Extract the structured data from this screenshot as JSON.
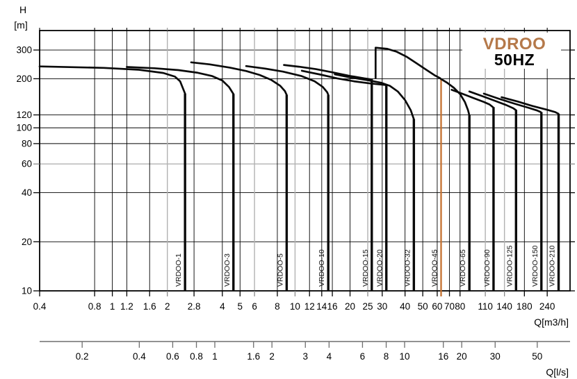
{
  "page": {
    "background": "#ffffff"
  },
  "title": {
    "brand": "VDROO",
    "frequency": "50HZ",
    "brand_color": "#b5794a",
    "frequency_color": "#000000"
  },
  "chart_data": {
    "type": "line",
    "title": "VDROO 50HZ pump family performance curves",
    "x_axis": {
      "label": "Q[m3/h]",
      "scale": "log",
      "range": [
        0.4,
        320
      ],
      "ticks": [
        "0.4",
        "0.8",
        "1",
        "1.2",
        "1.6",
        "2",
        "2.8",
        "4",
        "5",
        "6",
        "8",
        "10",
        "12",
        "14",
        "16",
        "20",
        "25",
        "30",
        "40",
        "50",
        "60",
        "70",
        "80",
        "110",
        "140",
        "180",
        "240"
      ],
      "gray_ticks": [
        2,
        6,
        10,
        25,
        110,
        140
      ]
    },
    "y_axis": {
      "label": "H",
      "unit": "[m]",
      "scale": "log",
      "range": [
        10,
        395
      ],
      "ticks": [
        300,
        200,
        120,
        100,
        80,
        60,
        40,
        20,
        10
      ],
      "gray_ticks": [
        60
      ]
    },
    "x_axis_secondary": {
      "label": "Q[l/s]",
      "ticks": [
        "0.2",
        "0.4",
        "0.6",
        "0.8",
        "1",
        "1.6",
        "2",
        "3",
        "4",
        "6",
        "8",
        "10",
        "16",
        "20",
        "30",
        "50"
      ]
    },
    "grid_color": "#000000",
    "grid_gray_color": "#b2b2b2",
    "curve_color": "#0a0a0a",
    "accent_drop_color": "#c4702e",
    "series": [
      {
        "name": "VRDOO-1",
        "end_q": 2.5,
        "points": [
          [
            0.4,
            238
          ],
          [
            0.9,
            233
          ],
          [
            1.4,
            227
          ],
          [
            1.9,
            217
          ],
          [
            2.2,
            206
          ],
          [
            2.35,
            193
          ],
          [
            2.5,
            162
          ]
        ]
      },
      {
        "name": "VRDOO-3",
        "end_q": 4.6,
        "points": [
          [
            1.2,
            236
          ],
          [
            1.7,
            232
          ],
          [
            2.3,
            226
          ],
          [
            2.9,
            218
          ],
          [
            3.5,
            208
          ],
          [
            4.0,
            195
          ],
          [
            4.35,
            178
          ],
          [
            4.6,
            161
          ]
        ]
      },
      {
        "name": "VRDOO-5",
        "end_q": 9.0,
        "points": [
          [
            2.7,
            252
          ],
          [
            3.4,
            245
          ],
          [
            4.4,
            234
          ],
          [
            5.4,
            223
          ],
          [
            6.4,
            211
          ],
          [
            7.4,
            197
          ],
          [
            8.3,
            181
          ],
          [
            8.8,
            168
          ],
          [
            9.0,
            159
          ]
        ]
      },
      {
        "name": "VRDOO-10",
        "end_q": 15.2,
        "points": [
          [
            5.4,
            239
          ],
          [
            6.8,
            231
          ],
          [
            8.6,
            221
          ],
          [
            10.8,
            208
          ],
          [
            12.8,
            193
          ],
          [
            14.2,
            178
          ],
          [
            15.0,
            165
          ],
          [
            15.2,
            159
          ]
        ]
      },
      {
        "name": "VRDOO-15",
        "end_q": 26.3,
        "points": [
          [
            8.7,
            243
          ],
          [
            10.5,
            237
          ],
          [
            13,
            229
          ],
          [
            16,
            219
          ],
          [
            20,
            208
          ],
          [
            24,
            201
          ],
          [
            26.3,
            198
          ]
        ]
      },
      {
        "name": "VRDOO-20",
        "end_q": 31.6,
        "points": [
          [
            10.9,
            224
          ],
          [
            13.8,
            212
          ],
          [
            17,
            201
          ],
          [
            21,
            193
          ],
          [
            26,
            187
          ],
          [
            30,
            184
          ],
          [
            31.6,
            183
          ]
        ]
      },
      {
        "name": "VRDOO-32",
        "end_q": 44.7,
        "points": [
          [
            16.5,
            213
          ],
          [
            20,
            204
          ],
          [
            25,
            196
          ],
          [
            29.5,
            189
          ],
          [
            33,
            181
          ],
          [
            36.5,
            167
          ],
          [
            40,
            148
          ],
          [
            43,
            128
          ],
          [
            44.7,
            113
          ]
        ]
      },
      {
        "name": "VRDOO-45",
        "end_q": 63,
        "drop_color": "#c4702e",
        "drop_width": 2.3,
        "drop_overshoot": 8,
        "points": [
          [
            27.6,
            202
          ],
          [
            27.6,
            310
          ],
          [
            32,
            305
          ],
          [
            36,
            293
          ],
          [
            41,
            272
          ],
          [
            46,
            250
          ],
          [
            52,
            228
          ],
          [
            58,
            210
          ],
          [
            62,
            202
          ],
          [
            63,
            199
          ]
        ]
      },
      {
        "name": "VRDOO-65",
        "end_q": 90,
        "points": [
          [
            63,
            199
          ],
          [
            68,
            189
          ],
          [
            74,
            176
          ],
          [
            80,
            161
          ],
          [
            85,
            144
          ],
          [
            88.5,
            128
          ],
          [
            89.8,
            120
          ]
        ]
      },
      {
        "name": "VRDOO-90",
        "end_q": 122,
        "points": [
          [
            72,
            171
          ],
          [
            82,
            162
          ],
          [
            95,
            152
          ],
          [
            108,
            144
          ],
          [
            116,
            139
          ],
          [
            121,
            134
          ]
        ]
      },
      {
        "name": "VRDOO-125",
        "end_q": 162,
        "points": [
          [
            90,
            167
          ],
          [
            105,
            157
          ],
          [
            125,
            146
          ],
          [
            143,
            138
          ],
          [
            156,
            132
          ],
          [
            161,
            129
          ]
        ]
      },
      {
        "name": "VRDOO-150",
        "end_q": 223,
        "points": [
          [
            108,
            162
          ],
          [
            130,
            151
          ],
          [
            158,
            141
          ],
          [
            188,
            133
          ],
          [
            210,
            128
          ],
          [
            221,
            125
          ]
        ]
      },
      {
        "name": "VRDOO-210",
        "end_q": 277,
        "points": [
          [
            135,
            154
          ],
          [
            165,
            145
          ],
          [
            200,
            136
          ],
          [
            240,
            129
          ],
          [
            265,
            125
          ],
          [
            276,
            122
          ]
        ]
      }
    ]
  }
}
